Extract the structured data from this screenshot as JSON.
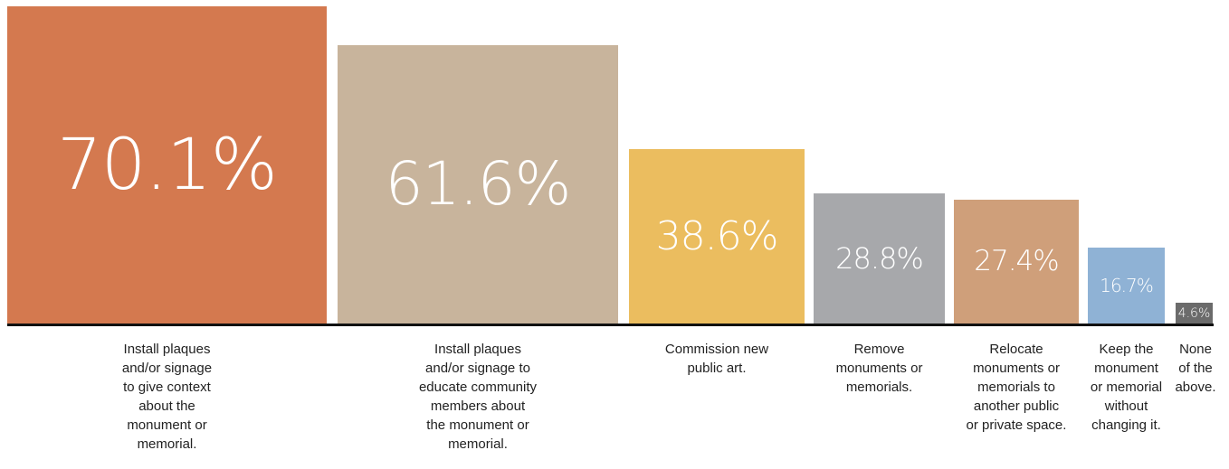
{
  "chart_data": {
    "type": "bar",
    "categories": [
      "Install plaques\nand/or signage\nto give context\nabout the\nmonument or\nmemorial.",
      "Install plaques\nand/or signage to\neducate community\nmembers about\nthe monument or\nmemorial.",
      "Commission new\npublic art.",
      "Remove\nmonuments or\nmemorials.",
      "Relocate\nmonuments or\nmemorials to\nanother public\nor private space.",
      "Keep the\nmonument\nor memorial\nwithout\nchanging it.",
      "None\nof the\nabove."
    ],
    "values": [
      70.1,
      61.6,
      38.6,
      28.8,
      27.4,
      16.7,
      4.6
    ],
    "value_labels": [
      "70.1%",
      "61.6%",
      "38.6%",
      "28.8%",
      "27.4%",
      "16.7%",
      "4.6%"
    ],
    "colors": [
      "#d4794f",
      "#c8b49c",
      "#ebbd5f",
      "#a7a8ab",
      "#cf9f7a",
      "#8fb2d5",
      "#6b6b6b"
    ],
    "ylim": [
      0,
      70.1
    ],
    "grid": false,
    "legend": "none"
  }
}
